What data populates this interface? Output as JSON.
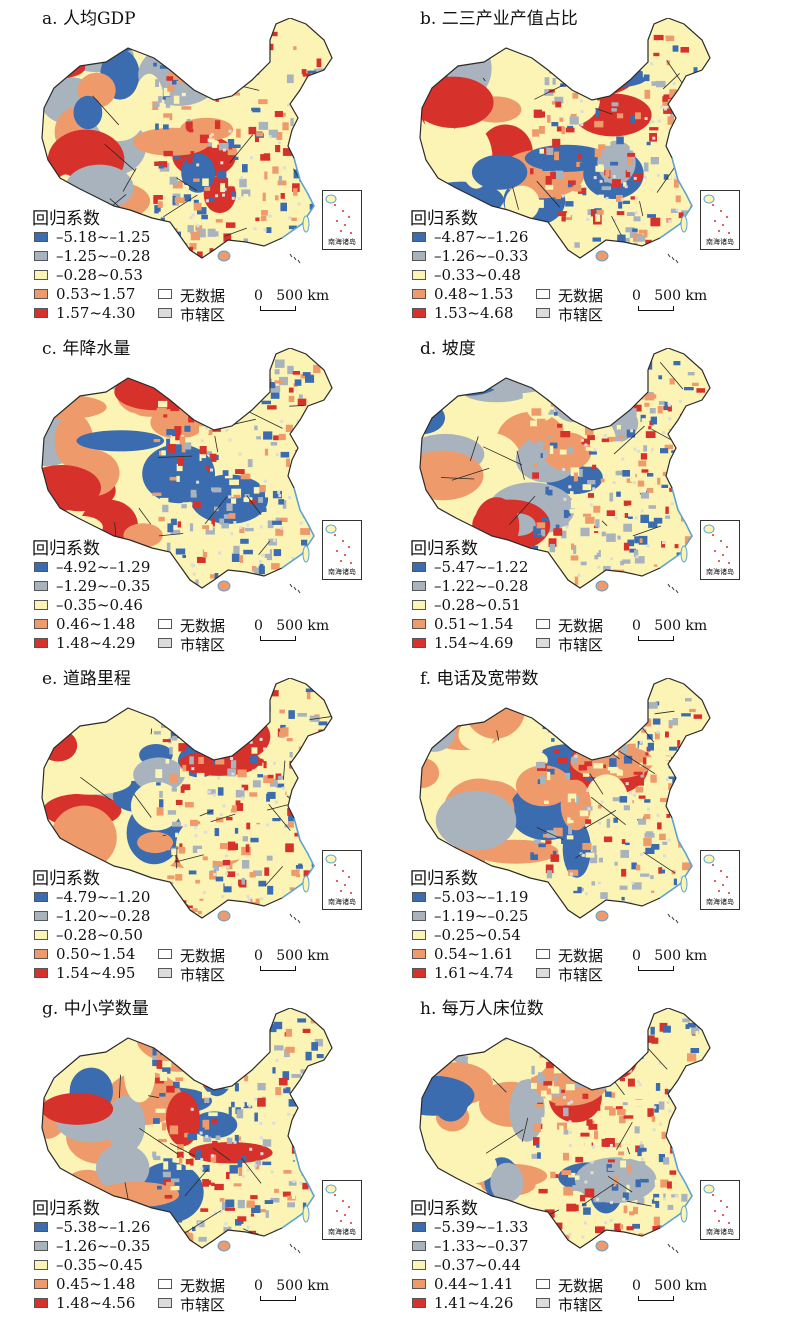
{
  "colors": {
    "class1": "#3b6cb0",
    "class2": "#a9b3bd",
    "class3": "#fbf4b4",
    "class4": "#ef9a6a",
    "class5": "#d7312b",
    "nodata": "#ffffff",
    "urban": "#dcdcdc",
    "boundary": "#2b2b2b",
    "water": "#5aa5d8"
  },
  "legend_title": "回归系数",
  "nodata_label": "无数据",
  "urban_label": "市辖区",
  "scale_label": "0   500 km",
  "inset_label": "南海诸岛",
  "panels": [
    {
      "title": "a. 人均GDP",
      "classes": [
        "–5.18~–1.25",
        "–1.25~–0.28",
        "–0.28~0.53",
        "0.53~1.57",
        "1.57~4.30"
      ]
    },
    {
      "title": "b. 二三产业产值占比",
      "classes": [
        "–4.87~–1.26",
        "–1.26~–0.33",
        "–0.33~0.48",
        "0.48~1.53",
        "1.53~4.68"
      ]
    },
    {
      "title": "c. 年降水量",
      "classes": [
        "–4.92~–1.29",
        "–1.29~–0.35",
        "–0.35~0.46",
        "0.46~1.48",
        "1.48~4.29"
      ]
    },
    {
      "title": "d. 坡度",
      "classes": [
        "–5.47~–1.22",
        "–1.22~–0.28",
        "–0.28~0.51",
        "0.51~1.54",
        "1.54~4.69"
      ]
    },
    {
      "title": "e. 道路里程",
      "classes": [
        "–4.79~–1.20",
        "–1.20~–0.28",
        "–0.28~0.50",
        "0.50~1.54",
        "1.54~4.95"
      ]
    },
    {
      "title": "f. 电话及宽带数",
      "classes": [
        "–5.03~–1.19",
        "–1.19~–0.25",
        "–0.25~0.54",
        "0.54~1.61",
        "1.61~4.74"
      ]
    },
    {
      "title": "g. 中小学数量",
      "classes": [
        "–5.38~–1.26",
        "–1.26~–0.35",
        "–0.35~0.45",
        "0.45~1.48",
        "1.48~4.56"
      ]
    },
    {
      "title": "h. 每万人床位数",
      "classes": [
        "–5.39~–1.33",
        "–1.33~–0.37",
        "–0.37~0.44",
        "0.44~1.41",
        "1.41~4.26"
      ]
    }
  ]
}
